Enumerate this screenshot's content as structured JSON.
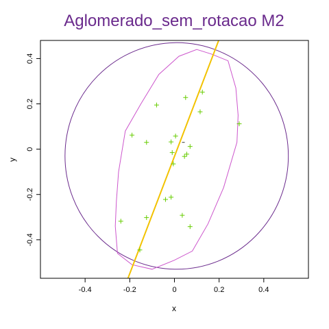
{
  "chart_data": {
    "type": "scatter",
    "title": "Aglomerado_sem_rotacao M2",
    "xlabel": "x",
    "ylabel": "y",
    "xlim": [
      -0.6,
      0.6
    ],
    "ylim": [
      -0.57,
      0.48
    ],
    "xticks": [
      -0.4,
      -0.2,
      0.0,
      0.2,
      0.4
    ],
    "xtick_labels": [
      "-0.4",
      "-0.2",
      "0",
      "0.2",
      "0.4"
    ],
    "yticks": [
      -0.4,
      -0.2,
      0.0,
      0.2,
      0.4
    ],
    "ytick_labels": [
      "-0.4",
      "-0.2",
      "0",
      "0.2",
      "0.4"
    ],
    "grid": false,
    "colors": {
      "title": "#6a2a8c",
      "points": "#66cc00",
      "circle": "#6a2a8c",
      "ellipse": "#cc55cc",
      "line": "#f2c200",
      "axis": "#000000"
    },
    "points": [
      {
        "x": 0.125,
        "y": 0.252
      },
      {
        "x": 0.05,
        "y": 0.228
      },
      {
        "x": -0.08,
        "y": 0.195
      },
      {
        "x": 0.115,
        "y": 0.165
      },
      {
        "x": 0.29,
        "y": 0.112
      },
      {
        "x": -0.19,
        "y": 0.062
      },
      {
        "x": 0.005,
        "y": 0.058
      },
      {
        "x": -0.015,
        "y": 0.032
      },
      {
        "x": -0.125,
        "y": 0.03
      },
      {
        "x": 0.07,
        "y": 0.012
      },
      {
        "x": -0.01,
        "y": -0.015
      },
      {
        "x": 0.055,
        "y": -0.022
      },
      {
        "x": 0.045,
        "y": -0.032
      },
      {
        "x": -0.005,
        "y": -0.065
      },
      {
        "x": -0.015,
        "y": -0.212
      },
      {
        "x": -0.04,
        "y": -0.222
      },
      {
        "x": 0.035,
        "y": -0.292
      },
      {
        "x": -0.125,
        "y": -0.302
      },
      {
        "x": -0.24,
        "y": -0.318
      },
      {
        "x": 0.07,
        "y": -0.342
      },
      {
        "x": -0.155,
        "y": -0.445
      }
    ],
    "center_mark": {
      "x": 0.04,
      "y": 0.03,
      "symbol": "-"
    },
    "circle": {
      "cx": 0.01,
      "cy": -0.03,
      "r": 0.5
    },
    "ellipse_outline": [
      [
        0.1,
        0.44
      ],
      [
        0.165,
        0.42
      ],
      [
        0.24,
        0.39
      ],
      [
        0.275,
        0.27
      ],
      [
        0.285,
        0.15
      ],
      [
        0.28,
        0.03
      ],
      [
        0.22,
        -0.17
      ],
      [
        0.15,
        -0.33
      ],
      [
        0.08,
        -0.45
      ],
      [
        0.0,
        -0.49
      ],
      [
        -0.1,
        -0.53
      ],
      [
        -0.19,
        -0.51
      ],
      [
        -0.255,
        -0.46
      ],
      [
        -0.265,
        -0.34
      ],
      [
        -0.26,
        -0.23
      ],
      [
        -0.25,
        -0.1
      ],
      [
        -0.22,
        0.08
      ],
      [
        -0.15,
        0.2
      ],
      [
        -0.07,
        0.33
      ],
      [
        0.02,
        0.41
      ]
    ],
    "line": {
      "x1": -0.21,
      "y1": -0.575,
      "x2": 0.2,
      "y2": 0.485
    }
  }
}
